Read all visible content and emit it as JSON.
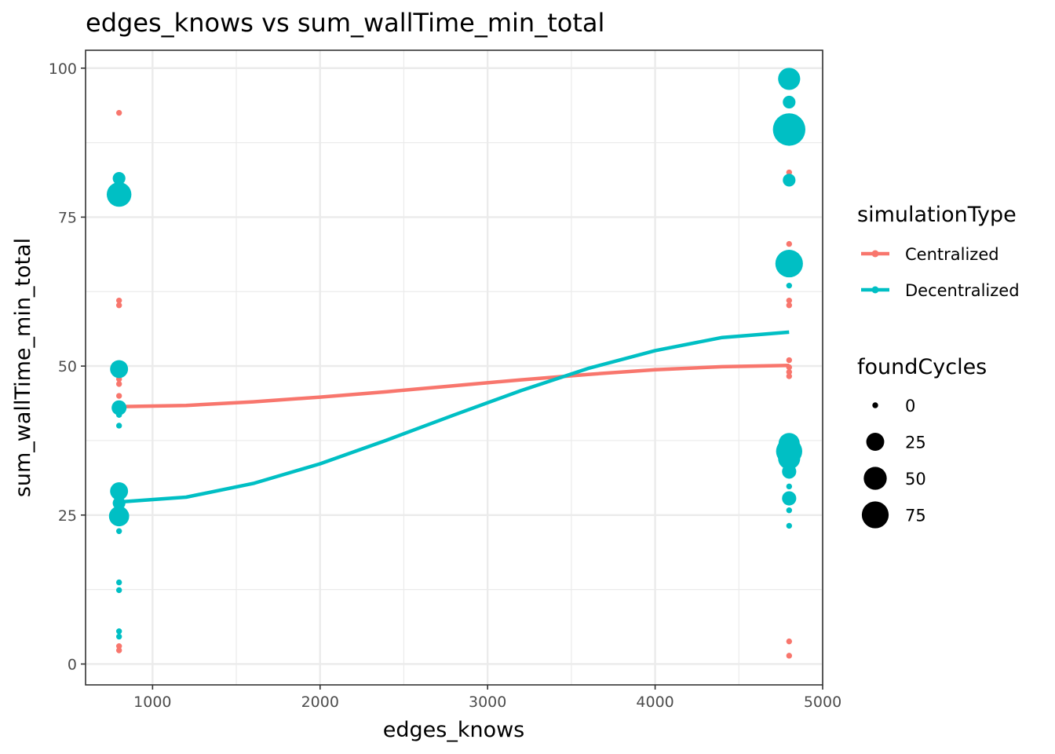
{
  "chart_data": {
    "type": "scatter",
    "title": "edges_knows  vs  sum_wallTime_min_total",
    "xlabel": "edges_knows",
    "ylabel": "sum_wallTime_min_total",
    "xlim": [
      600,
      5000
    ],
    "ylim": [
      -3.5,
      103
    ],
    "x_ticks": [
      1000,
      2000,
      3000,
      4000,
      5000
    ],
    "x_tick_labels": [
      "1000",
      "2000",
      "3000",
      "4000",
      "5000"
    ],
    "y_ticks": [
      0,
      25,
      50,
      75,
      100
    ],
    "y_tick_labels": [
      "0",
      "25",
      "50",
      "75",
      "100"
    ],
    "grid": true,
    "legend_position": "right",
    "legend_color_title": "simulationType",
    "legend_size_title": "foundCycles",
    "size_legend": [
      {
        "label": "0",
        "value": 0
      },
      {
        "label": "25",
        "value": 25
      },
      {
        "label": "50",
        "value": 50
      },
      {
        "label": "75",
        "value": 75
      }
    ],
    "series": [
      {
        "name": "Centralized",
        "color": "#F8766D",
        "points": [
          {
            "x": 800,
            "y": 92.5,
            "size": 0
          },
          {
            "x": 800,
            "y": 61.0,
            "size": 0
          },
          {
            "x": 800,
            "y": 60.2,
            "size": 0
          },
          {
            "x": 800,
            "y": 49.5,
            "size": 0
          },
          {
            "x": 800,
            "y": 48.6,
            "size": 0
          },
          {
            "x": 800,
            "y": 47.8,
            "size": 0
          },
          {
            "x": 800,
            "y": 47.0,
            "size": 0
          },
          {
            "x": 800,
            "y": 45.0,
            "size": 0
          },
          {
            "x": 800,
            "y": 43.0,
            "size": 0
          },
          {
            "x": 800,
            "y": 3.0,
            "size": 0
          },
          {
            "x": 800,
            "y": 2.3,
            "size": 0
          },
          {
            "x": 4800,
            "y": 82.5,
            "size": 0
          },
          {
            "x": 4800,
            "y": 70.5,
            "size": 0
          },
          {
            "x": 4800,
            "y": 61.0,
            "size": 0
          },
          {
            "x": 4800,
            "y": 60.2,
            "size": 0
          },
          {
            "x": 4800,
            "y": 51.0,
            "size": 0
          },
          {
            "x": 4800,
            "y": 49.8,
            "size": 0
          },
          {
            "x": 4800,
            "y": 49.0,
            "size": 0
          },
          {
            "x": 4800,
            "y": 48.3,
            "size": 0
          },
          {
            "x": 4800,
            "y": 3.8,
            "size": 0
          },
          {
            "x": 4800,
            "y": 1.4,
            "size": 0
          }
        ],
        "smooth": {
          "x": [
            800,
            1200,
            1600,
            2000,
            2400,
            2800,
            3200,
            3600,
            4000,
            4400,
            4800
          ],
          "y": [
            43.2,
            43.4,
            44.0,
            44.8,
            45.7,
            46.7,
            47.7,
            48.6,
            49.4,
            49.9,
            50.1
          ]
        }
      },
      {
        "name": "Decentralized",
        "color": "#00BFC4",
        "points": [
          {
            "x": 800,
            "y": 81.5,
            "size": 8
          },
          {
            "x": 800,
            "y": 78.8,
            "size": 60
          },
          {
            "x": 800,
            "y": 49.5,
            "size": 25
          },
          {
            "x": 800,
            "y": 43.0,
            "size": 14
          },
          {
            "x": 800,
            "y": 41.8,
            "size": 0
          },
          {
            "x": 800,
            "y": 40.0,
            "size": 0
          },
          {
            "x": 800,
            "y": 29.0,
            "size": 25
          },
          {
            "x": 800,
            "y": 27.0,
            "size": 8
          },
          {
            "x": 800,
            "y": 24.8,
            "size": 35
          },
          {
            "x": 800,
            "y": 22.3,
            "size": 0
          },
          {
            "x": 800,
            "y": 13.7,
            "size": 0
          },
          {
            "x": 800,
            "y": 12.4,
            "size": 0
          },
          {
            "x": 800,
            "y": 5.5,
            "size": 0
          },
          {
            "x": 800,
            "y": 4.6,
            "size": 0
          },
          {
            "x": 4800,
            "y": 98.2,
            "size": 45
          },
          {
            "x": 4800,
            "y": 94.3,
            "size": 8
          },
          {
            "x": 4800,
            "y": 89.7,
            "size": 120
          },
          {
            "x": 4800,
            "y": 81.2,
            "size": 8
          },
          {
            "x": 4800,
            "y": 67.2,
            "size": 80
          },
          {
            "x": 4800,
            "y": 66.0,
            "size": 0
          },
          {
            "x": 4800,
            "y": 63.5,
            "size": 0
          },
          {
            "x": 4800,
            "y": 37.0,
            "size": 40
          },
          {
            "x": 4800,
            "y": 35.7,
            "size": 70
          },
          {
            "x": 4800,
            "y": 34.5,
            "size": 45
          },
          {
            "x": 4800,
            "y": 32.3,
            "size": 12
          },
          {
            "x": 4800,
            "y": 29.8,
            "size": 0
          },
          {
            "x": 4800,
            "y": 27.8,
            "size": 12
          },
          {
            "x": 4800,
            "y": 25.8,
            "size": 0
          },
          {
            "x": 4800,
            "y": 23.2,
            "size": 0
          }
        ],
        "smooth": {
          "x": [
            800,
            1200,
            1600,
            2000,
            2400,
            2800,
            3200,
            3600,
            4000,
            4400,
            4800
          ],
          "y": [
            27.2,
            28.0,
            30.3,
            33.6,
            37.6,
            41.8,
            45.9,
            49.6,
            52.6,
            54.8,
            55.7
          ]
        }
      }
    ]
  }
}
